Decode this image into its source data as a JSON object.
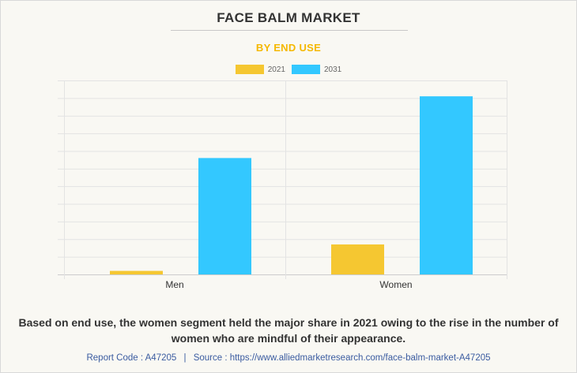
{
  "title": "FACE BALM MARKET",
  "subtitle": "BY END USE",
  "caption": "Based on end use, the women segment held the major share in 2021 owing to the rise in the number of women who are mindful of their appearance.",
  "source": {
    "report_code": "Report Code : A47205",
    "separator": "|",
    "text": "Source : https://www.alliedmarketresearch.com/face-balm-market-A47205"
  },
  "colors": {
    "2021": "#f5c731",
    "2031": "#33c8ff",
    "accent": "#f5b800",
    "source": "#3a5ba0"
  },
  "chart_data": {
    "type": "bar",
    "categories": [
      "Men",
      "Women"
    ],
    "series": [
      {
        "name": "2021",
        "values": [
          0.2,
          1.7
        ]
      },
      {
        "name": "2031",
        "values": [
          6.6,
          10.1
        ]
      }
    ],
    "ylim": [
      0,
      11
    ],
    "grid": true,
    "legend": "top-center"
  }
}
